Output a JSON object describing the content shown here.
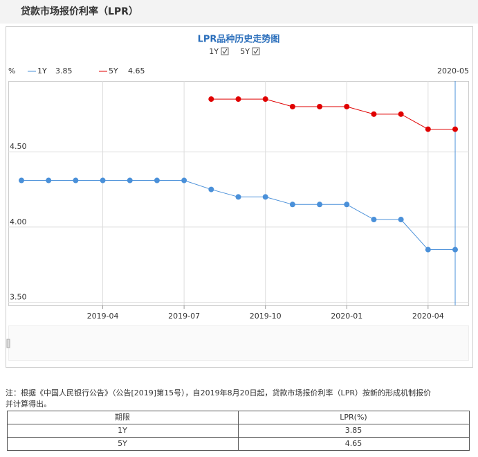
{
  "header": {
    "title": "贷款市场报价利率（LPR）"
  },
  "chart_data": {
    "type": "line",
    "title": "LPR品种历史走势图",
    "y_label": "%",
    "x": [
      "2019-01",
      "2019-02",
      "2019-03",
      "2019-04",
      "2019-05",
      "2019-06",
      "2019-07",
      "2019-08",
      "2019-09",
      "2019-10",
      "2019-11",
      "2019-12",
      "2020-01",
      "2020-02",
      "2020-03",
      "2020-04",
      "2020-05"
    ],
    "xticks": [
      "2019-04",
      "2019-07",
      "2019-10",
      "2020-01",
      "2020-04"
    ],
    "series": [
      {
        "name": "1Y",
        "color": "#4a90d9",
        "values": [
          4.31,
          4.31,
          4.31,
          4.31,
          4.31,
          4.31,
          4.31,
          4.25,
          4.2,
          4.2,
          4.15,
          4.15,
          4.15,
          4.05,
          4.05,
          3.85,
          3.85
        ]
      },
      {
        "name": "5Y",
        "color": "#e00000",
        "values": [
          null,
          null,
          null,
          null,
          null,
          null,
          null,
          4.85,
          4.85,
          4.85,
          4.8,
          4.8,
          4.8,
          4.75,
          4.75,
          4.65,
          4.65
        ]
      }
    ],
    "ylim": [
      3.48,
      4.97
    ],
    "yticks": [
      {
        "value": 3.5,
        "label": "3.50"
      },
      {
        "value": 4.0,
        "label": "4.00"
      },
      {
        "value": 4.5,
        "label": "4.50"
      }
    ],
    "grid": true
  },
  "note": [
    "注：根据《中国人民银行公告》（公告[2019]第15号），自2019年8月20日起，贷款市场报价利率（LPR）按新的形成机制报价",
    "并计算得出。"
  ],
  "table": {
    "header": [
      "期限",
      "LPR(%)"
    ],
    "rows": [
      [
        "1Y",
        "3.85"
      ],
      [
        "5Y",
        "4.65"
      ]
    ]
  }
}
